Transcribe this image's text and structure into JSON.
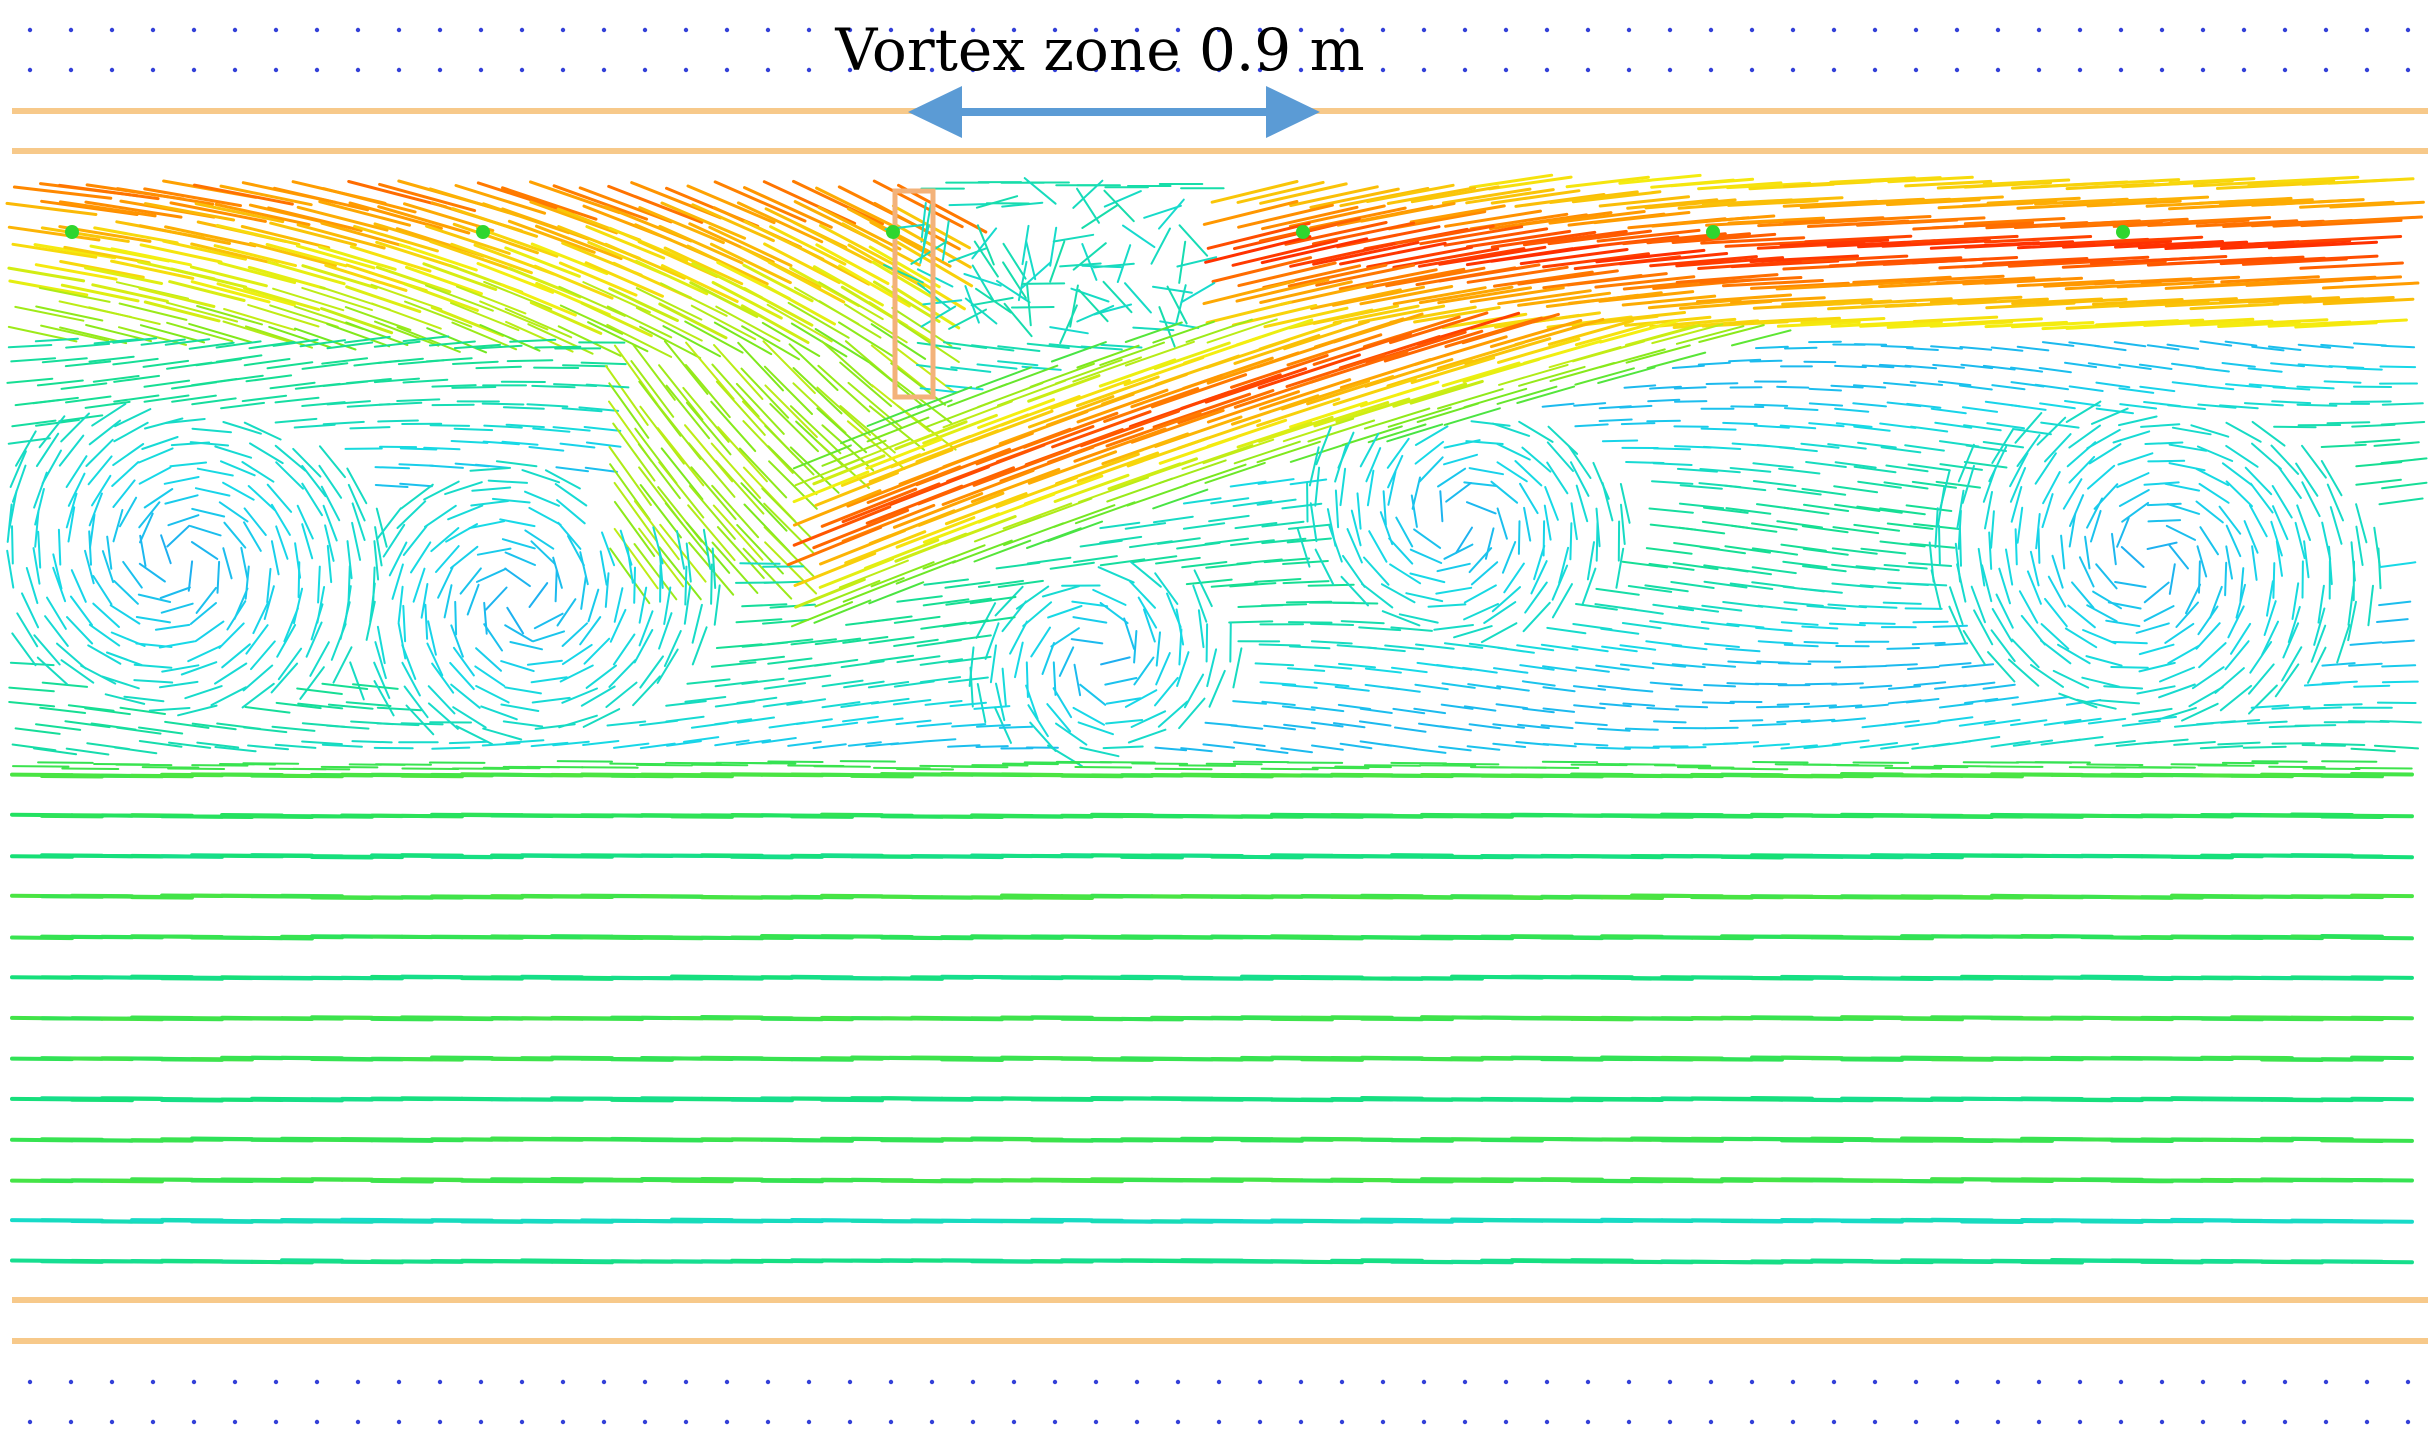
{
  "annotation": {
    "vortex_zone_label": "Vortex zone 0.9 m"
  },
  "colors": {
    "boundary_line": "#f7c98a",
    "baffle": "#f3b27a",
    "marker_dot": "#2fd62f",
    "grid_dot": "#3340d8",
    "dimension_arrow": "#5b9bd5",
    "velocity_colormap": [
      "#2a66ff",
      "#17d9e8",
      "#16e06a",
      "#7ce81c",
      "#f4ef10",
      "#ff9a00",
      "#ff1a00"
    ]
  },
  "legend": "none"
}
